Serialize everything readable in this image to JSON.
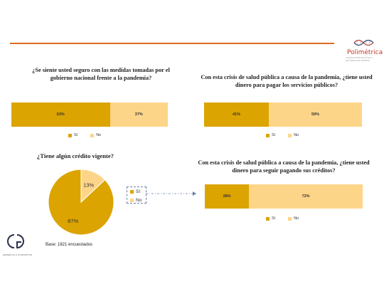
{
  "brand": {
    "name": "Polimétrica",
    "tagline": "CONSULTORÍA POLÍTICA Y ESTUDIOS DE OPINIÓN",
    "footer_logo": "GC",
    "footer_sub": "GERENCIA & CONCEPTOS"
  },
  "colors": {
    "si": "#dba400",
    "no": "#fdd589",
    "accent": "#e06a1f",
    "connector": "#6b7fa8"
  },
  "legend": {
    "si": "Sí",
    "no": "No"
  },
  "base_note": "Base: 1821 encuestados",
  "chart_data": [
    {
      "type": "bar",
      "orientation": "horizontal-stacked",
      "title": "¿Se siente usted seguro con las medidas tomadas por el gobierno nacional frente a la pandemia?",
      "categories": [
        "Sí",
        "No"
      ],
      "values": [
        63,
        37
      ],
      "labels": [
        "63%",
        "37%"
      ]
    },
    {
      "type": "bar",
      "orientation": "horizontal-stacked",
      "title": "Con esta crisis de salud pública a causa de la pandemia, ¿tiene usted dinero para pagar los servicios públicos?",
      "categories": [
        "Sí",
        "No"
      ],
      "values": [
        41,
        59
      ],
      "labels": [
        "41%",
        "59%"
      ]
    },
    {
      "type": "pie",
      "title": "¿Tiene algún crédito vigente?",
      "categories": [
        "Sí",
        "No"
      ],
      "values": [
        87,
        13
      ],
      "labels": [
        "87%",
        "13%"
      ]
    },
    {
      "type": "bar",
      "orientation": "horizontal-stacked",
      "title": "Con esta crisis de salud pública a causa de la pandemia, ¿tiene usted dinero para seguir pagando sus créditos?",
      "categories": [
        "Sí",
        "No"
      ],
      "values": [
        28,
        72
      ],
      "labels": [
        "28%",
        "72%"
      ]
    }
  ]
}
